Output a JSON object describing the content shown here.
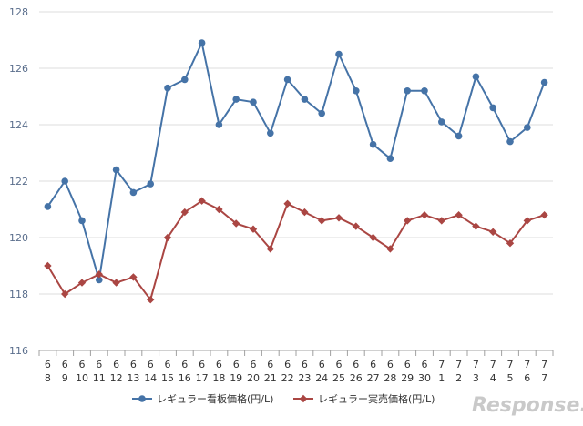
{
  "chart_data": {
    "type": "line",
    "categories": [
      [
        "6",
        "8"
      ],
      [
        "6",
        "9"
      ],
      [
        "6",
        "10"
      ],
      [
        "6",
        "11"
      ],
      [
        "6",
        "12"
      ],
      [
        "6",
        "13"
      ],
      [
        "6",
        "14"
      ],
      [
        "6",
        "15"
      ],
      [
        "6",
        "16"
      ],
      [
        "6",
        "17"
      ],
      [
        "6",
        "18"
      ],
      [
        "6",
        "19"
      ],
      [
        "6",
        "20"
      ],
      [
        "6",
        "21"
      ],
      [
        "6",
        "22"
      ],
      [
        "6",
        "23"
      ],
      [
        "6",
        "24"
      ],
      [
        "6",
        "25"
      ],
      [
        "6",
        "26"
      ],
      [
        "6",
        "27"
      ],
      [
        "6",
        "28"
      ],
      [
        "6",
        "29"
      ],
      [
        "6",
        "30"
      ],
      [
        "7",
        "1"
      ],
      [
        "7",
        "2"
      ],
      [
        "7",
        "3"
      ],
      [
        "7",
        "4"
      ],
      [
        "7",
        "5"
      ],
      [
        "7",
        "6"
      ],
      [
        "7",
        "7"
      ]
    ],
    "series": [
      {
        "name": "レギュラー看板価格(円/L)",
        "color": "#4573a7",
        "marker": "circle",
        "values": [
          121.1,
          122.0,
          120.6,
          118.5,
          122.4,
          121.6,
          121.9,
          125.3,
          125.6,
          126.9,
          124.0,
          124.9,
          124.8,
          123.7,
          125.6,
          124.9,
          124.4,
          126.5,
          125.2,
          123.3,
          122.8,
          125.2,
          125.2,
          124.1,
          123.6,
          125.7,
          124.6,
          123.4,
          123.9,
          125.5
        ]
      },
      {
        "name": "レギュラー実売価格(円/L)",
        "color": "#aa4643",
        "marker": "diamond",
        "values": [
          119.0,
          118.0,
          118.4,
          118.7,
          118.4,
          118.6,
          117.8,
          120.0,
          120.9,
          121.3,
          121.0,
          120.5,
          120.3,
          119.6,
          121.2,
          120.9,
          120.6,
          120.7,
          120.4,
          120.0,
          119.6,
          120.6,
          120.8,
          120.6,
          120.8,
          120.4,
          120.2,
          119.8,
          120.6,
          120.8
        ]
      }
    ],
    "yticks": [
      116,
      118,
      120,
      122,
      124,
      126,
      128
    ],
    "ylim": [
      116,
      128
    ],
    "grid": true,
    "legend_position": "bottom",
    "title": "",
    "xlabel": "",
    "ylabel": ""
  },
  "watermark": {
    "text": "Response."
  }
}
